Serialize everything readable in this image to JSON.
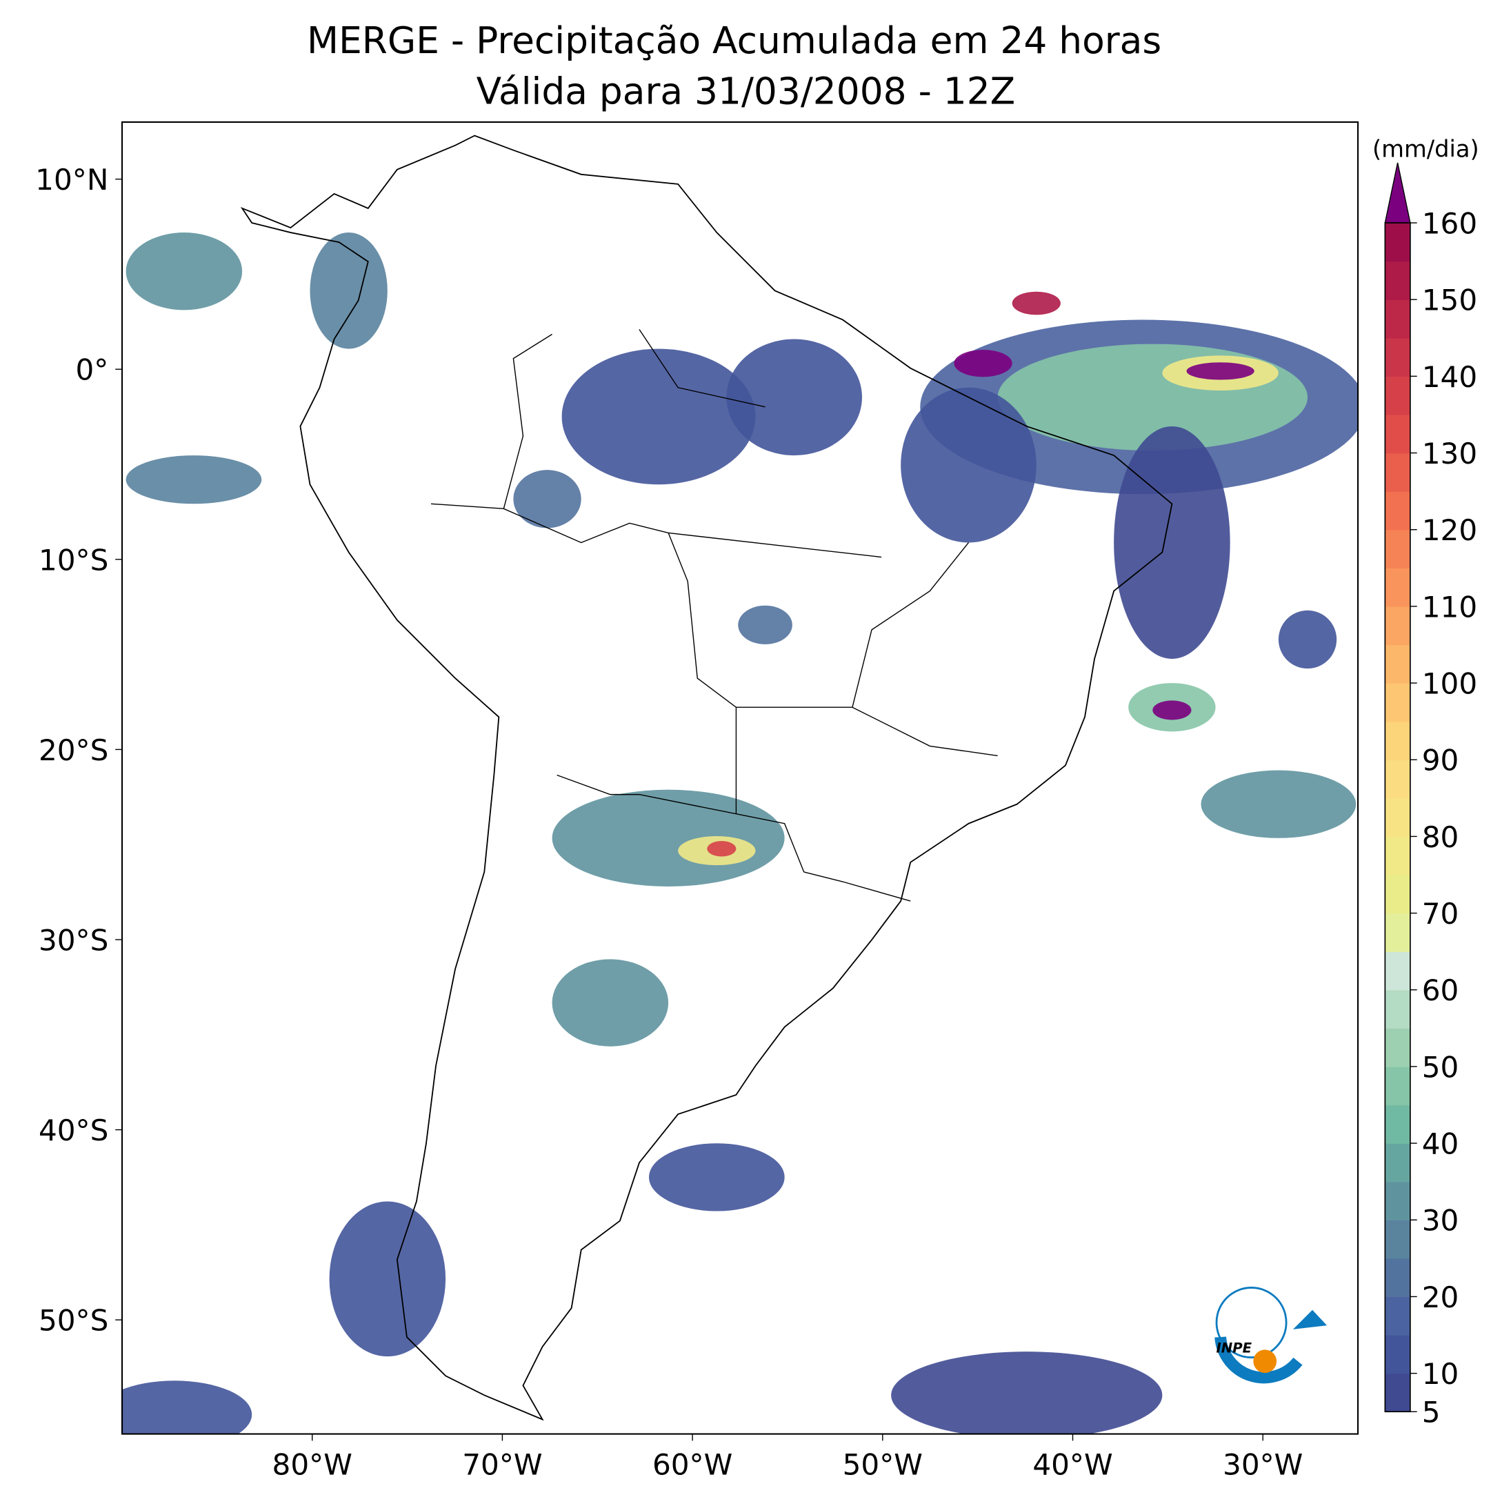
{
  "chart_data": {
    "type": "map",
    "title": [
      "MERGE - Precipitação Acumulada em 24 horas",
      "Válida para 31/03/2008 - 12Z"
    ],
    "xlim": [
      -90,
      -25
    ],
    "ylim": [
      -56,
      13
    ],
    "xticks": [
      {
        "value": -80,
        "label": "80°W"
      },
      {
        "value": -70,
        "label": "70°W"
      },
      {
        "value": -60,
        "label": "60°W"
      },
      {
        "value": -50,
        "label": "50°W"
      },
      {
        "value": -40,
        "label": "40°W"
      },
      {
        "value": -30,
        "label": "30°W"
      }
    ],
    "yticks": [
      {
        "value": 10,
        "label": "10°N"
      },
      {
        "value": 0,
        "label": "0°"
      },
      {
        "value": -10,
        "label": "10°S"
      },
      {
        "value": -20,
        "label": "20°S"
      },
      {
        "value": -30,
        "label": "30°S"
      },
      {
        "value": -40,
        "label": "40°S"
      },
      {
        "value": -50,
        "label": "50°S"
      }
    ],
    "colorbar": {
      "label": "(mm/dia)",
      "lim": [
        5,
        160
      ],
      "ticks": [
        5,
        10,
        20,
        30,
        40,
        50,
        60,
        70,
        80,
        90,
        100,
        110,
        120,
        130,
        140,
        150,
        160
      ],
      "colors": [
        "#3f4a91",
        "#43559a",
        "#4b63a0",
        "#53739f",
        "#5a839e",
        "#5f949f",
        "#66a6a0",
        "#70b9a2",
        "#86c5a7",
        "#9dd0b0",
        "#b4dbc3",
        "#cde6d9",
        "#e3ef9a",
        "#eaec8a",
        "#f1e887",
        "#f7e384",
        "#fbdc80",
        "#fcd47a",
        "#fdc672",
        "#fdb76a",
        "#fba663",
        "#f9955c",
        "#f68356",
        "#f27150",
        "#ea5f4c",
        "#e14e4a",
        "#d64149",
        "#cb3549",
        "#bd2849",
        "#ae1b49",
        "#9e0f4a"
      ],
      "extend_color": "#7b0080"
    },
    "logo": "INPE"
  }
}
